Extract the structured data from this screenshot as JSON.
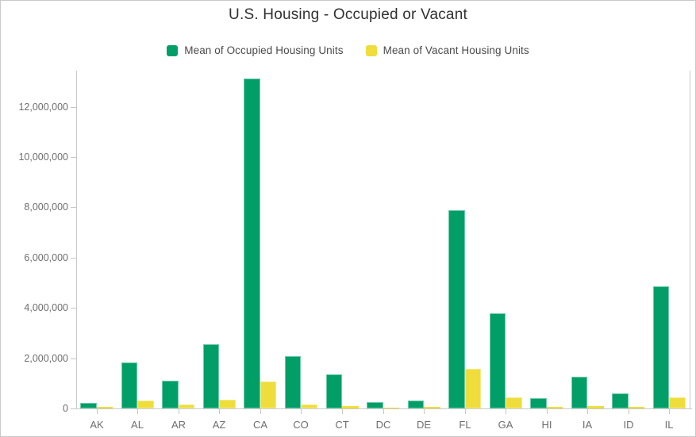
{
  "title": "U.S. Housing - Occupied or Vacant",
  "legend": {
    "items": [
      {
        "label": "Mean of Occupied Housing Units",
        "color": "#029e68"
      },
      {
        "label": "Mean of Vacant Housing Units",
        "color": "#eedd3b"
      }
    ]
  },
  "chart_data": {
    "type": "bar",
    "title": "U.S. Housing - Occupied or Vacant",
    "categories": [
      "AK",
      "AL",
      "AR",
      "AZ",
      "CA",
      "CO",
      "CT",
      "DC",
      "DE",
      "FL",
      "GA",
      "HI",
      "IA",
      "ID",
      "IL"
    ],
    "series": [
      {
        "name": "Mean of Occupied Housing Units",
        "color": "#029e68",
        "edge_color": "#6fcbaa",
        "values": [
          220000,
          1840000,
          1110000,
          2570000,
          13120000,
          2090000,
          1350000,
          250000,
          310000,
          7900000,
          3790000,
          420000,
          1260000,
          600000,
          4870000
        ]
      },
      {
        "name": "Mean of Vacant Housing Units",
        "color": "#eedd3b",
        "edge_color": "#f5ec8a",
        "values": [
          55000,
          330000,
          150000,
          350000,
          1060000,
          170000,
          85000,
          30000,
          50000,
          1580000,
          440000,
          65000,
          90000,
          55000,
          430000
        ]
      }
    ],
    "xlabel": "",
    "ylabel": "",
    "ylim": [
      0,
      13450000
    ],
    "ytick_step": 2000000,
    "ytick_labels": [
      "0",
      "2,000,000",
      "4,000,000",
      "6,000,000",
      "8,000,000",
      "10,000,000",
      "12,000,000"
    ],
    "grid": false,
    "legend_position": "top"
  }
}
